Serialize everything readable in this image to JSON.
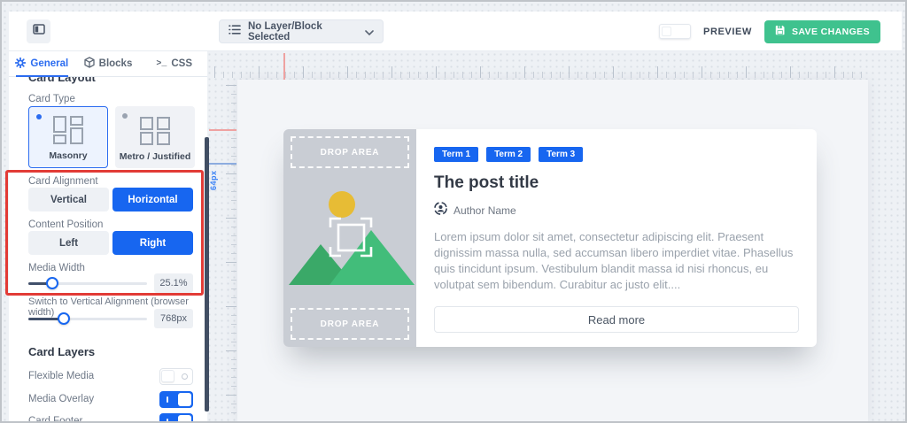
{
  "topbar": {
    "layer_dropdown": {
      "label": "No Layer/Block Selected"
    },
    "preview_label": "PREVIEW",
    "save_button": "SAVE CHANGES"
  },
  "sidebar": {
    "tabs": [
      {
        "label": "General"
      },
      {
        "label": "Blocks"
      },
      {
        "label": "CSS"
      }
    ],
    "scrolled_heading": "Card Layout",
    "card_type": {
      "label": "Card Type",
      "options": [
        {
          "label": "Masonry"
        },
        {
          "label": "Metro / Justified"
        }
      ],
      "selected": "Masonry"
    },
    "card_alignment": {
      "label": "Card Alignment",
      "options": [
        {
          "label": "Vertical"
        },
        {
          "label": "Horizontal"
        }
      ],
      "selected": "Horizontal"
    },
    "content_position": {
      "label": "Content Position",
      "options": [
        {
          "label": "Left"
        },
        {
          "label": "Right"
        }
      ],
      "selected": "Right"
    },
    "media_width": {
      "label": "Media Width",
      "value": "25.1%",
      "slider_percent": 20
    },
    "vertical_switch": {
      "label": "Switch to Vertical Alignment (browser width)",
      "value": "768px",
      "slider_percent": 30
    },
    "card_layers": {
      "heading": "Card Layers",
      "rows": [
        {
          "label": "Flexible Media",
          "on": false
        },
        {
          "label": "Media Overlay",
          "on": true
        },
        {
          "label": "Card Footer",
          "on": true
        }
      ]
    }
  },
  "canvas": {
    "guide_label": "64px",
    "card": {
      "drop_area_top": "DROP AREA",
      "drop_area_bottom": "DROP AREA",
      "terms": [
        {
          "label": "Term 1"
        },
        {
          "label": "Term 2"
        },
        {
          "label": "Term 3"
        }
      ],
      "title": "The post title",
      "author": "Author Name",
      "excerpt": "Lorem ipsum dolor sit amet, consectetur adipiscing elit. Praesent dignissim massa nulla, sed accumsan libero imperdiet vitae. Phasellus quis tincidunt ipsum. Vestibulum blandit massa id nisi rhoncus, eu volutpat sem bibendum. Curabitur ac justo elit....",
      "read_more": "Read more"
    }
  },
  "icons": {
    "collapse": "sidebar-collapse-icon",
    "layers_list": "layer-list-icon",
    "chevron": "chevron-down-icon",
    "gear": "gear-icon",
    "cube": "cube-icon",
    "terminal": "terminal-icon",
    "save": "save-icon",
    "avatar": "avatar-icon",
    "placeholder": "image-placeholder-icon"
  },
  "colors": {
    "accent_blue": "#1766f0",
    "save_green": "#3fc28e",
    "highlight_red": "#e23b36"
  }
}
